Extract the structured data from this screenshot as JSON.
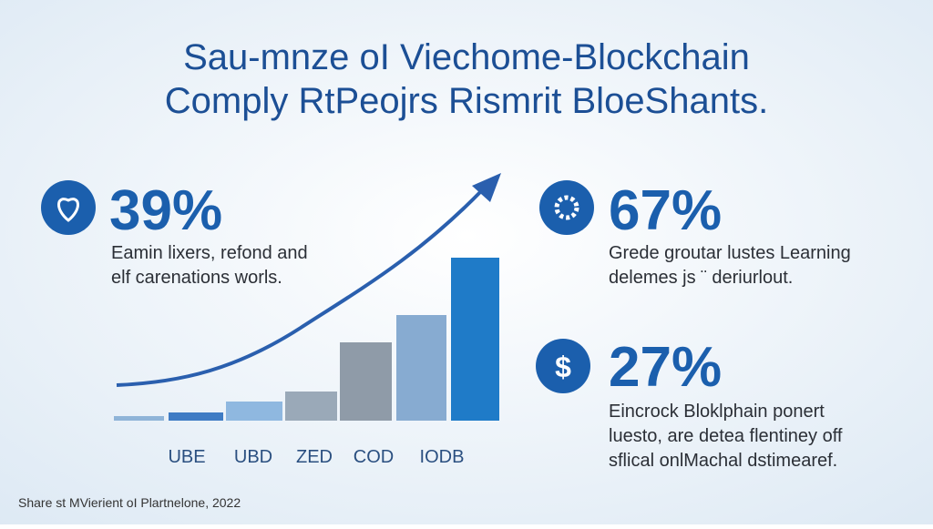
{
  "header": {
    "title_lines": [
      "Sau-mnze oI Viechome-Blockchain",
      "Comply RtPeojrs Rismrit BloeShants."
    ]
  },
  "stats": [
    {
      "value": "39%",
      "lines": [
        "Eamin lixers, refond and",
        "elf carenations worls."
      ]
    },
    {
      "value": "67%",
      "lines": [
        "Grede groutar lustes Learning",
        "delemes js ¨ deriurlout."
      ]
    },
    {
      "value": "27%",
      "lines": [
        "Eincrock Bloklphain ponert",
        "luesto, are detea flentiney off",
        "sflical onlMachal dstimearef."
      ]
    }
  ],
  "graphic": {
    "labels": [
      "UBE",
      "UBD",
      "ZED",
      "COD",
      "IODB"
    ]
  },
  "footer": {
    "source": "Share st MVierient oI Plartnelone, 2022"
  }
}
